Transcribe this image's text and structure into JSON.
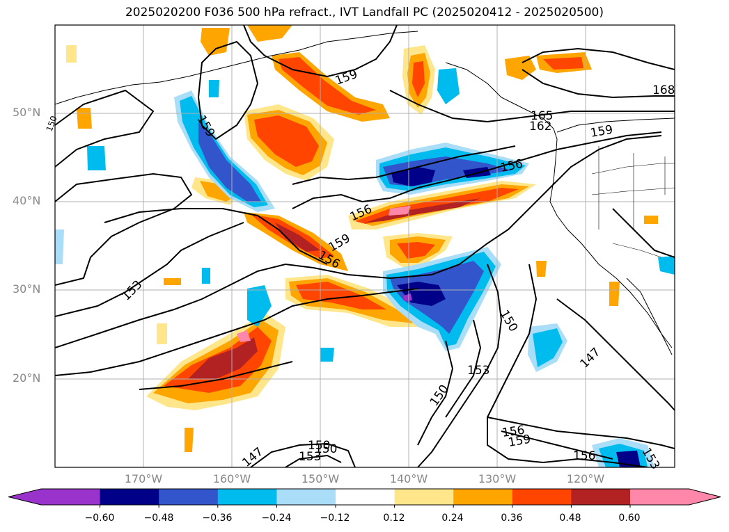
{
  "title": "2025020200 F036 500 hPa refract., IVT Landfall PC (2025020412 - 2025020500)",
  "lat_labels": [
    "50°N",
    "40°N",
    "30°N",
    "20°N"
  ],
  "lon_labels": [
    "170°W",
    "160°W",
    "150°W",
    "140°W",
    "130°W",
    "120°W"
  ],
  "colorbar": {
    "ticks": [
      "−0.60",
      "−0.48",
      "−0.36",
      "−0.24",
      "−0.12",
      "0.12",
      "0.24",
      "0.36",
      "0.48",
      "0.60"
    ],
    "colors": [
      "#9933cc",
      "#000088",
      "#3355cc",
      "#00bbee",
      "#aaddf7",
      "#ffffff",
      "#ffe68a",
      "#ffa500",
      "#ff4500",
      "#b22222",
      "#ff88aa"
    ]
  },
  "contour_labels": [
    "159",
    "159",
    "168",
    "162",
    "165",
    "159",
    "156",
    "156",
    "159",
    "156",
    "153",
    "150",
    "153",
    "150",
    "147",
    "156",
    "159",
    "156",
    "153",
    "150",
    "153",
    "150",
    "147",
    "150"
  ],
  "colors": {
    "grid": "#b0b0b0",
    "contour": "#000000",
    "coast": "#000000"
  }
}
